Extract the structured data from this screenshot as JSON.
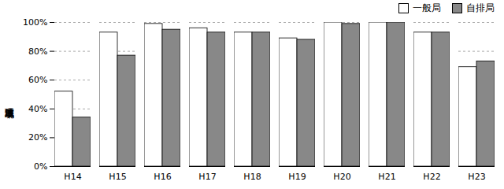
{
  "chart_data": {
    "type": "bar",
    "categories": [
      "H14",
      "H15",
      "H16",
      "H17",
      "H18",
      "H19",
      "H20",
      "H21",
      "H22",
      "H23"
    ],
    "series": [
      {
        "name": "一般局",
        "color": "#ffffff",
        "values": [
          52,
          93,
          99,
          96,
          93,
          89,
          100,
          100,
          93,
          69
        ]
      },
      {
        "name": "自排局",
        "color": "#888888",
        "values": [
          34,
          77,
          95,
          93,
          93,
          88,
          99,
          100,
          93,
          73
        ]
      }
    ],
    "ylabel": "環境基準達成率",
    "ylim": [
      0,
      100
    ],
    "yticks": [
      {
        "value": 0,
        "label": "0%"
      },
      {
        "value": 20,
        "label": "20%"
      },
      {
        "value": 40,
        "label": "40%"
      },
      {
        "value": 60,
        "label": "60%"
      },
      {
        "value": 80,
        "label": "80%"
      },
      {
        "value": 100,
        "label": "100%"
      }
    ],
    "grid": true,
    "legend": "upper right"
  }
}
